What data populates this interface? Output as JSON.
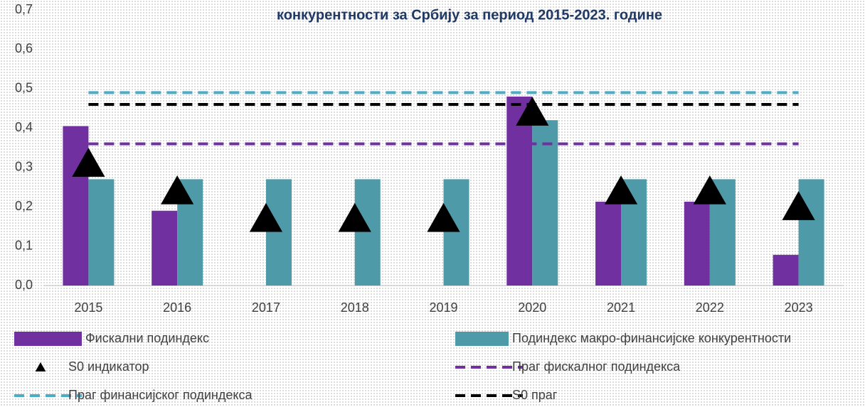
{
  "chart_data": {
    "type": "bar",
    "title": "конкурентности за Србију за период 2015-2023. године",
    "categories": [
      "2015",
      "2016",
      "2017",
      "2018",
      "2019",
      "2020",
      "2021",
      "2022",
      "2023"
    ],
    "series": [
      {
        "name": "Фискални подиндекс",
        "type": "bar",
        "color": "#7030a0",
        "values": [
          0.405,
          0.19,
          null,
          null,
          null,
          0.48,
          0.213,
          0.213,
          0.078
        ]
      },
      {
        "name": "Подиндекс макро-финансијске конкурентности",
        "type": "bar",
        "color": "#4f9aa8",
        "values": [
          0.27,
          0.27,
          0.27,
          0.27,
          0.27,
          0.42,
          0.27,
          0.27,
          0.27
        ]
      },
      {
        "name": "S0 индикатор",
        "type": "marker",
        "color": "#000000",
        "values": [
          0.31,
          0.24,
          0.17,
          0.17,
          0.17,
          0.44,
          0.24,
          0.24,
          0.2
        ]
      },
      {
        "name": "Праг фискалног подиндекса",
        "type": "dashed",
        "color": "#7030a0",
        "values": [
          0.36,
          0.36,
          0.36,
          0.36,
          0.36,
          0.36,
          0.36,
          0.36,
          0.36
        ]
      },
      {
        "name": "Праг финансијског подиндекса",
        "type": "dashed",
        "color": "#4bacc6",
        "values": [
          0.49,
          0.49,
          0.49,
          0.49,
          0.49,
          0.49,
          0.49,
          0.49,
          0.49
        ]
      },
      {
        "name": "S0 праг",
        "type": "dashed",
        "color": "#000000",
        "values": [
          0.46,
          0.46,
          0.46,
          0.46,
          0.46,
          0.46,
          0.46,
          0.46,
          0.46
        ]
      }
    ],
    "ylim": [
      0,
      0.7
    ],
    "yticks": [
      {
        "value": 0,
        "label": "0,0"
      },
      {
        "value": 0.1,
        "label": "0,1"
      },
      {
        "value": 0.2,
        "label": "0,2"
      },
      {
        "value": 0.3,
        "label": "0,3"
      },
      {
        "value": 0.4,
        "label": "0,4"
      },
      {
        "value": 0.5,
        "label": "0,5"
      },
      {
        "value": 0.6,
        "label": "0,6"
      },
      {
        "value": 0.7,
        "label": "0,7"
      }
    ],
    "grid": false,
    "legend": "bottom"
  }
}
